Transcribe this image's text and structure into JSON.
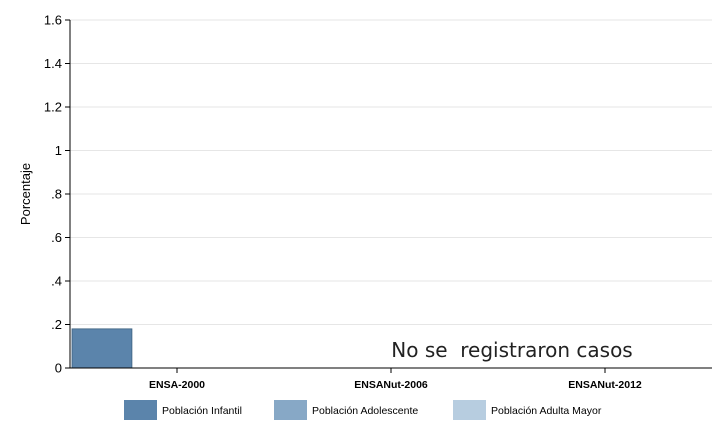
{
  "chart_data": {
    "type": "bar",
    "categories": [
      "ENSA-2000",
      "ENSANut-2006",
      "ENSANut-2012"
    ],
    "series": [
      {
        "name": "Población Infantil",
        "values": [
          0.18,
          0,
          0
        ],
        "color": "#5b84ab"
      },
      {
        "name": "Población Adolescente",
        "values": [
          0,
          0,
          0
        ],
        "color": "#87a8c6"
      },
      {
        "name": "Población Adulta Mayor",
        "values": [
          0,
          0,
          0
        ],
        "color": "#b7cde0"
      }
    ],
    "title": "",
    "xlabel": "",
    "ylabel": "Porcentaje",
    "ylim": [
      0,
      1.6
    ],
    "yticks": [
      0,
      0.2,
      0.4,
      0.6,
      0.8,
      1,
      1.2,
      1.4,
      1.6
    ],
    "ytick_labels": [
      "0",
      ".2",
      ".4",
      ".6",
      ".8",
      "1",
      "1.2",
      "1.4",
      "1.6"
    ],
    "grid": true,
    "legend_position": "bottom",
    "annotations": [
      {
        "text": "No se  registraron casos"
      }
    ]
  }
}
